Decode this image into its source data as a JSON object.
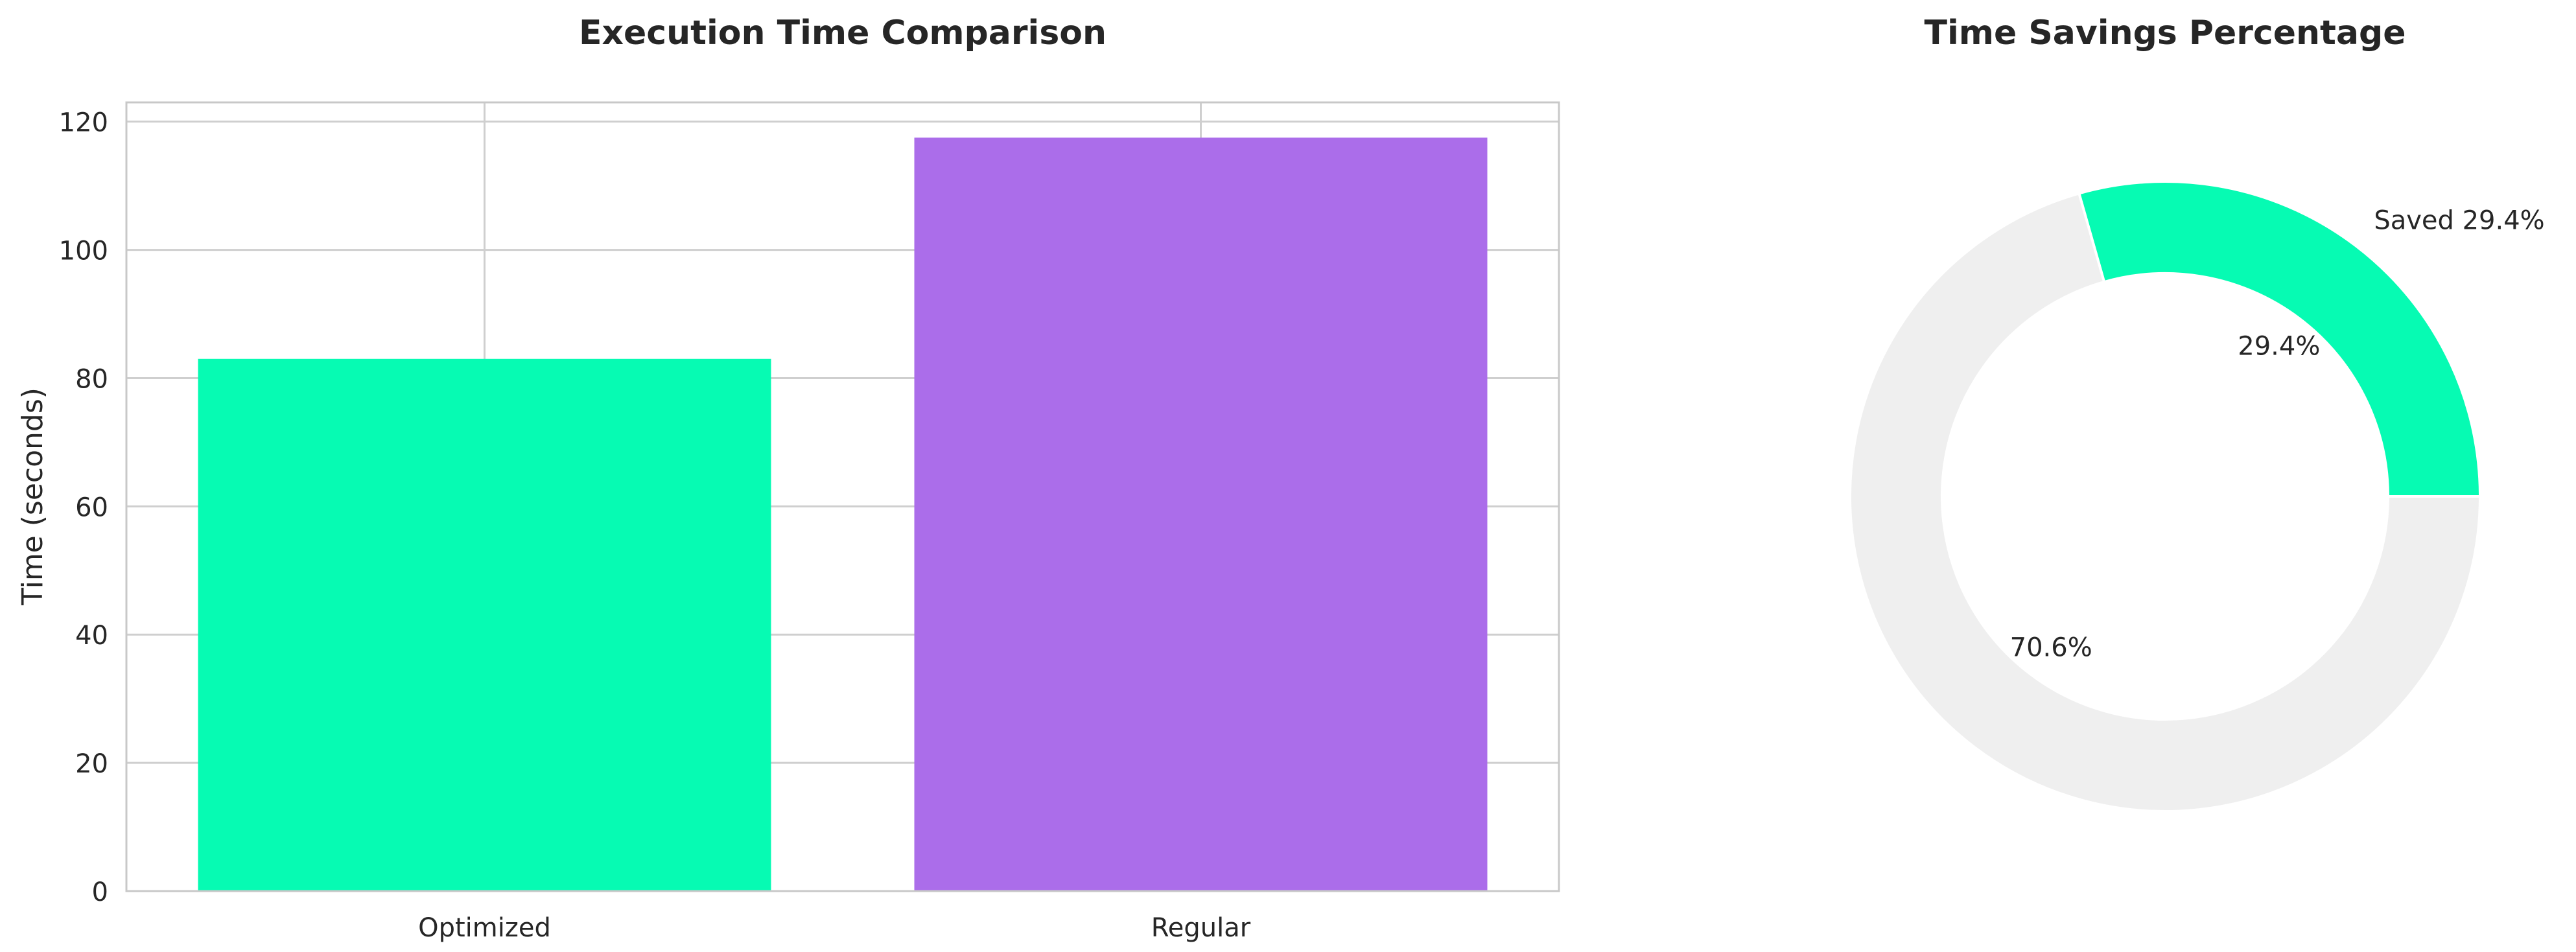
{
  "chart_data": [
    {
      "type": "bar",
      "title": "Execution Time Comparison",
      "xlabel": "",
      "ylabel": "Time (seconds)",
      "categories": [
        "Optimized",
        "Regular"
      ],
      "values": [
        83,
        117.5
      ],
      "colors": [
        "#06fbb3",
        "#ab6dea"
      ],
      "ylim": [
        0,
        123
      ],
      "yticks": [
        0,
        20,
        40,
        60,
        80,
        100,
        120
      ],
      "grid": true
    },
    {
      "type": "pie",
      "style": "donut",
      "title": "Time Savings Percentage",
      "slices": [
        {
          "value": 29.4,
          "pct_label": "29.4%",
          "outer_label": "Saved 29.4%",
          "color": "#06fbb3"
        },
        {
          "value": 70.6,
          "pct_label": "70.6%",
          "outer_label": "",
          "color": "#efefef"
        }
      ]
    }
  ]
}
